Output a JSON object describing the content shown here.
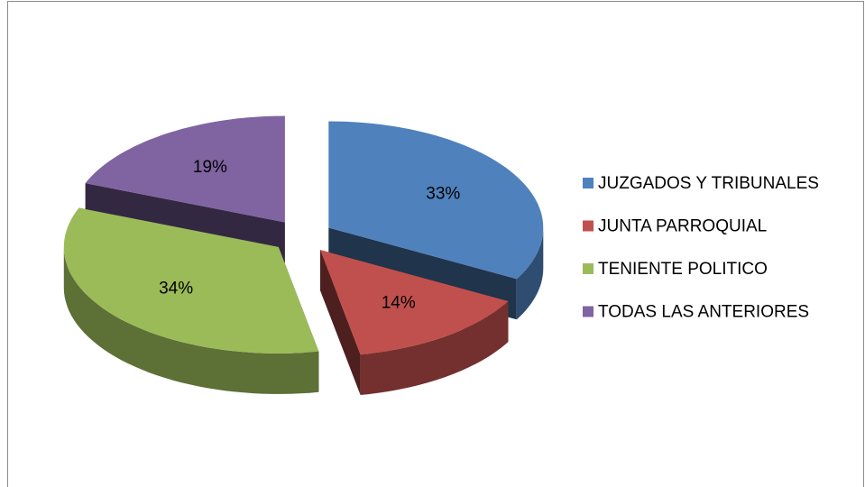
{
  "chart_data": {
    "type": "pie3d",
    "categories": [
      "JUZGADOS Y TRIBUNALES",
      "JUNTA PARROQUIAL",
      "TENIENTE POLITICO",
      "TODAS LAS ANTERIORES"
    ],
    "values": [
      33,
      14,
      34,
      19
    ],
    "value_labels": [
      "33%",
      "14%",
      "34%",
      "19%"
    ],
    "colors": [
      "#4f81bd",
      "#c0504d",
      "#9bbb59",
      "#8064a2"
    ],
    "legend": "right"
  }
}
